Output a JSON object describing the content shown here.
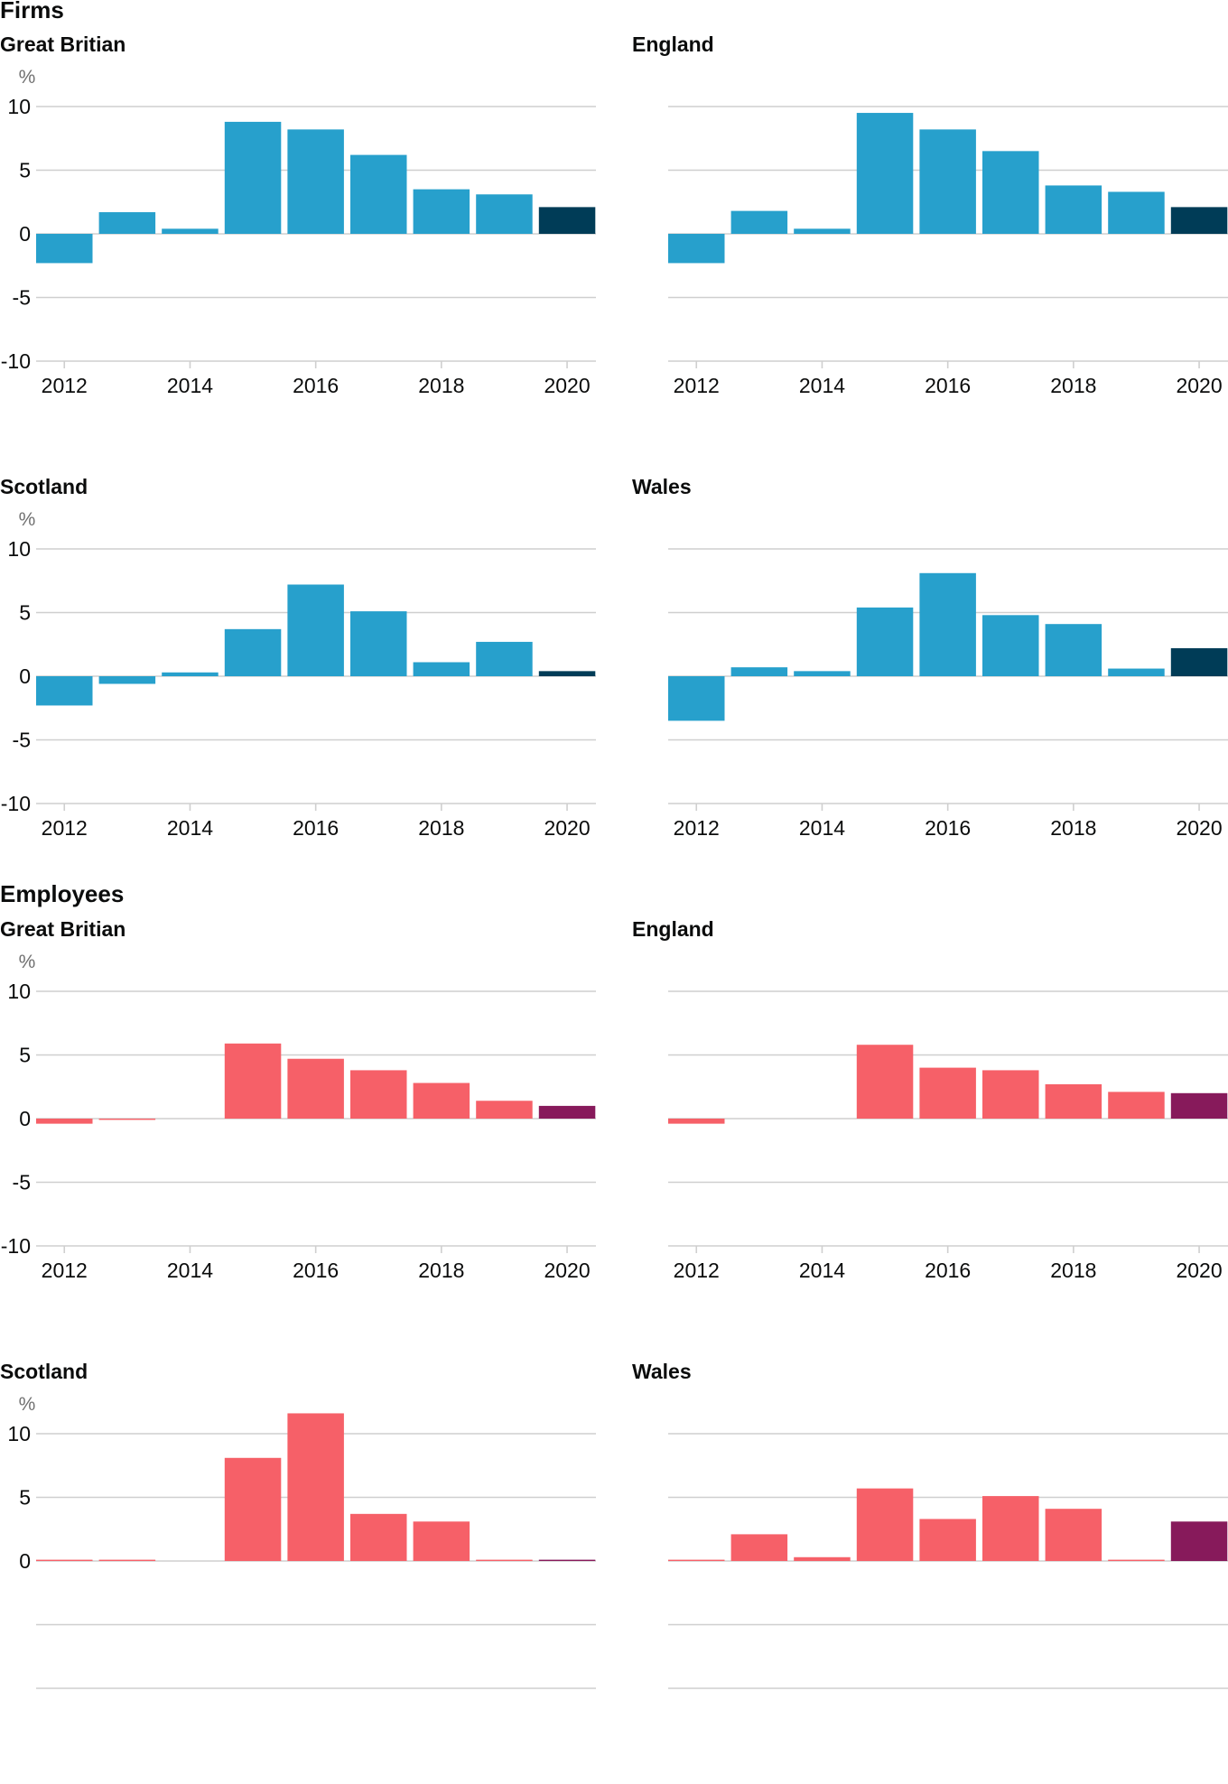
{
  "sections": {
    "firms": {
      "title": "Firms"
    },
    "employees": {
      "title": "Employees"
    }
  },
  "chart_data": [
    {
      "type": "bar",
      "group": "Firms",
      "title": "Great Britian",
      "ylabel": "%",
      "x": [
        2012,
        2013,
        2014,
        2015,
        2016,
        2017,
        2018,
        2019,
        2020
      ],
      "values": [
        -2.3,
        1.7,
        0.4,
        8.8,
        8.2,
        6.2,
        3.5,
        3.1,
        2.1
      ],
      "ylim": [
        -10,
        10
      ],
      "yticks": [
        10,
        5,
        0,
        -5,
        -10
      ],
      "xticks": [
        2012,
        2014,
        2016,
        2018,
        2020
      ],
      "colors": {
        "bar": "#27a0cc",
        "highlight": "#003c57"
      }
    },
    {
      "type": "bar",
      "group": "Firms",
      "title": "England",
      "x": [
        2012,
        2013,
        2014,
        2015,
        2016,
        2017,
        2018,
        2019,
        2020
      ],
      "values": [
        -2.3,
        1.8,
        0.4,
        9.5,
        8.2,
        6.5,
        3.8,
        3.3,
        2.1
      ],
      "ylim": [
        -10,
        10
      ],
      "xticks": [
        2012,
        2014,
        2016,
        2018,
        2020
      ],
      "colors": {
        "bar": "#27a0cc",
        "highlight": "#003c57"
      }
    },
    {
      "type": "bar",
      "group": "Firms",
      "title": "Scotland",
      "ylabel": "%",
      "x": [
        2012,
        2013,
        2014,
        2015,
        2016,
        2017,
        2018,
        2019,
        2020
      ],
      "values": [
        -2.3,
        -0.6,
        0.3,
        3.7,
        7.2,
        5.1,
        1.1,
        2.7,
        0.4
      ],
      "ylim": [
        -10,
        10
      ],
      "yticks": [
        10,
        5,
        0,
        -5,
        -10
      ],
      "xticks": [
        2012,
        2014,
        2016,
        2018,
        2020
      ],
      "colors": {
        "bar": "#27a0cc",
        "highlight": "#003c57"
      }
    },
    {
      "type": "bar",
      "group": "Firms",
      "title": "Wales",
      "x": [
        2012,
        2013,
        2014,
        2015,
        2016,
        2017,
        2018,
        2019,
        2020
      ],
      "values": [
        -3.5,
        0.7,
        0.4,
        5.4,
        8.1,
        4.8,
        4.1,
        0.6,
        2.2
      ],
      "ylim": [
        -10,
        10
      ],
      "xticks": [
        2012,
        2014,
        2016,
        2018,
        2020
      ],
      "colors": {
        "bar": "#27a0cc",
        "highlight": "#003c57"
      }
    },
    {
      "type": "bar",
      "group": "Employees",
      "title": "Great Britian",
      "ylabel": "%",
      "x": [
        2012,
        2013,
        2014,
        2015,
        2016,
        2017,
        2018,
        2019,
        2020
      ],
      "values": [
        -0.4,
        -0.1,
        0.0,
        5.9,
        4.7,
        3.8,
        2.8,
        1.4,
        1.0
      ],
      "ylim": [
        -10,
        10
      ],
      "yticks": [
        10,
        5,
        0,
        -5,
        -10
      ],
      "xticks": [
        2012,
        2014,
        2016,
        2018,
        2020
      ],
      "colors": {
        "bar": "#f66068",
        "highlight": "#871a5b"
      }
    },
    {
      "type": "bar",
      "group": "Employees",
      "title": "England",
      "x": [
        2012,
        2013,
        2014,
        2015,
        2016,
        2017,
        2018,
        2019,
        2020
      ],
      "values": [
        -0.4,
        0.0,
        0.0,
        5.8,
        4.0,
        3.8,
        2.7,
        2.1,
        2.0
      ],
      "ylim": [
        -10,
        10
      ],
      "xticks": [
        2012,
        2014,
        2016,
        2018,
        2020
      ],
      "colors": {
        "bar": "#f66068",
        "highlight": "#871a5b"
      }
    },
    {
      "type": "bar",
      "group": "Employees",
      "title": "Scotland",
      "ylabel": "%",
      "x": [
        2012,
        2013,
        2014,
        2015,
        2016,
        2017,
        2018,
        2019,
        2020
      ],
      "values": [
        0.1,
        0.1,
        0.0,
        8.1,
        11.6,
        3.7,
        3.1,
        0.1,
        0.1
      ],
      "ylim": [
        -10,
        10
      ],
      "yticks": [
        10,
        5,
        0
      ],
      "xticks": [],
      "colors": {
        "bar": "#f66068",
        "highlight": "#871a5b"
      }
    },
    {
      "type": "bar",
      "group": "Employees",
      "title": "Wales",
      "x": [
        2012,
        2013,
        2014,
        2015,
        2016,
        2017,
        2018,
        2019,
        2020
      ],
      "values": [
        0.1,
        2.1,
        0.3,
        5.7,
        3.3,
        5.1,
        4.1,
        0.1,
        3.1
      ],
      "ylim": [
        -10,
        10
      ],
      "xticks": [],
      "colors": {
        "bar": "#f66068",
        "highlight": "#871a5b"
      }
    }
  ]
}
